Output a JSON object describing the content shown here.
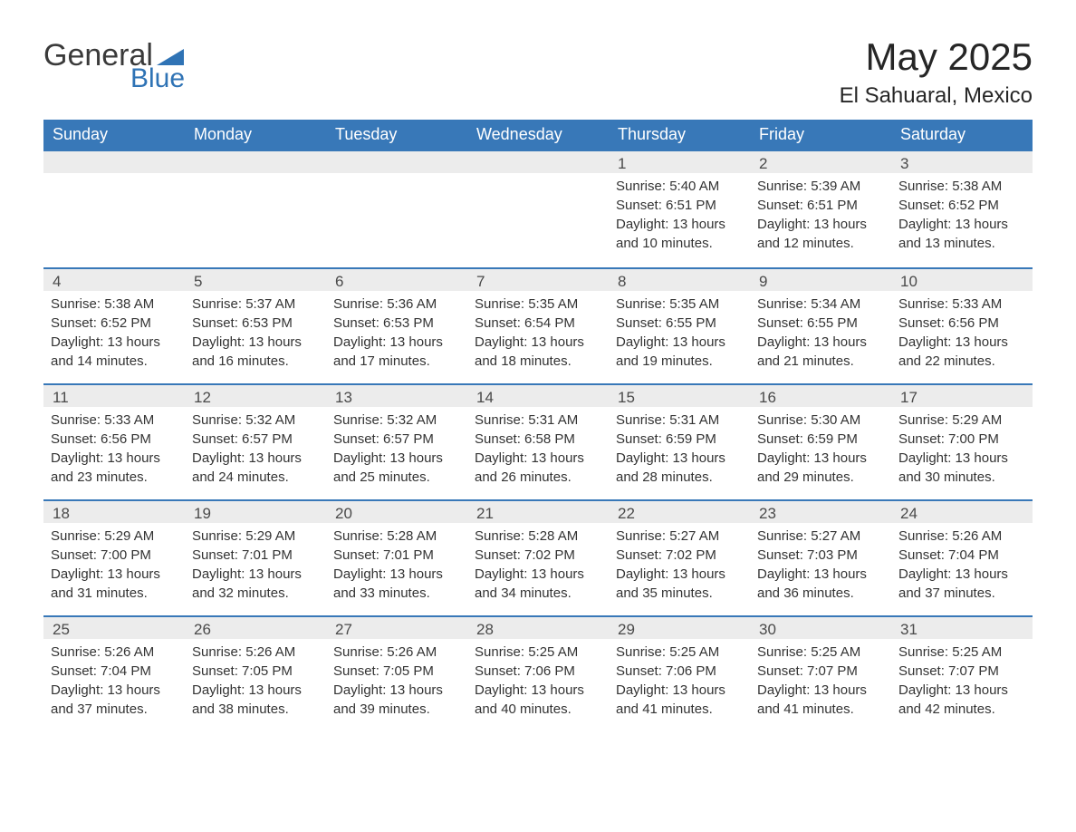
{
  "logo": {
    "text1": "General",
    "text2": "Blue",
    "accent": "#2f73b5"
  },
  "title": "May 2025",
  "location": "El Sahuaral, Mexico",
  "colors": {
    "header_bg": "#3878b8",
    "header_text": "#ffffff",
    "band_bg": "#ececec",
    "rule": "#3878b8",
    "body_text": "#333333"
  },
  "dow": [
    "Sunday",
    "Monday",
    "Tuesday",
    "Wednesday",
    "Thursday",
    "Friday",
    "Saturday"
  ],
  "weeks": [
    [
      null,
      null,
      null,
      null,
      {
        "n": "1",
        "sr": "5:40 AM",
        "ss": "6:51 PM",
        "dl": "13 hours and 10 minutes."
      },
      {
        "n": "2",
        "sr": "5:39 AM",
        "ss": "6:51 PM",
        "dl": "13 hours and 12 minutes."
      },
      {
        "n": "3",
        "sr": "5:38 AM",
        "ss": "6:52 PM",
        "dl": "13 hours and 13 minutes."
      }
    ],
    [
      {
        "n": "4",
        "sr": "5:38 AM",
        "ss": "6:52 PM",
        "dl": "13 hours and 14 minutes."
      },
      {
        "n": "5",
        "sr": "5:37 AM",
        "ss": "6:53 PM",
        "dl": "13 hours and 16 minutes."
      },
      {
        "n": "6",
        "sr": "5:36 AM",
        "ss": "6:53 PM",
        "dl": "13 hours and 17 minutes."
      },
      {
        "n": "7",
        "sr": "5:35 AM",
        "ss": "6:54 PM",
        "dl": "13 hours and 18 minutes."
      },
      {
        "n": "8",
        "sr": "5:35 AM",
        "ss": "6:55 PM",
        "dl": "13 hours and 19 minutes."
      },
      {
        "n": "9",
        "sr": "5:34 AM",
        "ss": "6:55 PM",
        "dl": "13 hours and 21 minutes."
      },
      {
        "n": "10",
        "sr": "5:33 AM",
        "ss": "6:56 PM",
        "dl": "13 hours and 22 minutes."
      }
    ],
    [
      {
        "n": "11",
        "sr": "5:33 AM",
        "ss": "6:56 PM",
        "dl": "13 hours and 23 minutes."
      },
      {
        "n": "12",
        "sr": "5:32 AM",
        "ss": "6:57 PM",
        "dl": "13 hours and 24 minutes."
      },
      {
        "n": "13",
        "sr": "5:32 AM",
        "ss": "6:57 PM",
        "dl": "13 hours and 25 minutes."
      },
      {
        "n": "14",
        "sr": "5:31 AM",
        "ss": "6:58 PM",
        "dl": "13 hours and 26 minutes."
      },
      {
        "n": "15",
        "sr": "5:31 AM",
        "ss": "6:59 PM",
        "dl": "13 hours and 28 minutes."
      },
      {
        "n": "16",
        "sr": "5:30 AM",
        "ss": "6:59 PM",
        "dl": "13 hours and 29 minutes."
      },
      {
        "n": "17",
        "sr": "5:29 AM",
        "ss": "7:00 PM",
        "dl": "13 hours and 30 minutes."
      }
    ],
    [
      {
        "n": "18",
        "sr": "5:29 AM",
        "ss": "7:00 PM",
        "dl": "13 hours and 31 minutes."
      },
      {
        "n": "19",
        "sr": "5:29 AM",
        "ss": "7:01 PM",
        "dl": "13 hours and 32 minutes."
      },
      {
        "n": "20",
        "sr": "5:28 AM",
        "ss": "7:01 PM",
        "dl": "13 hours and 33 minutes."
      },
      {
        "n": "21",
        "sr": "5:28 AM",
        "ss": "7:02 PM",
        "dl": "13 hours and 34 minutes."
      },
      {
        "n": "22",
        "sr": "5:27 AM",
        "ss": "7:02 PM",
        "dl": "13 hours and 35 minutes."
      },
      {
        "n": "23",
        "sr": "5:27 AM",
        "ss": "7:03 PM",
        "dl": "13 hours and 36 minutes."
      },
      {
        "n": "24",
        "sr": "5:26 AM",
        "ss": "7:04 PM",
        "dl": "13 hours and 37 minutes."
      }
    ],
    [
      {
        "n": "25",
        "sr": "5:26 AM",
        "ss": "7:04 PM",
        "dl": "13 hours and 37 minutes."
      },
      {
        "n": "26",
        "sr": "5:26 AM",
        "ss": "7:05 PM",
        "dl": "13 hours and 38 minutes."
      },
      {
        "n": "27",
        "sr": "5:26 AM",
        "ss": "7:05 PM",
        "dl": "13 hours and 39 minutes."
      },
      {
        "n": "28",
        "sr": "5:25 AM",
        "ss": "7:06 PM",
        "dl": "13 hours and 40 minutes."
      },
      {
        "n": "29",
        "sr": "5:25 AM",
        "ss": "7:06 PM",
        "dl": "13 hours and 41 minutes."
      },
      {
        "n": "30",
        "sr": "5:25 AM",
        "ss": "7:07 PM",
        "dl": "13 hours and 41 minutes."
      },
      {
        "n": "31",
        "sr": "5:25 AM",
        "ss": "7:07 PM",
        "dl": "13 hours and 42 minutes."
      }
    ]
  ],
  "labels": {
    "sunrise": "Sunrise: ",
    "sunset": "Sunset: ",
    "daylight": "Daylight: "
  }
}
